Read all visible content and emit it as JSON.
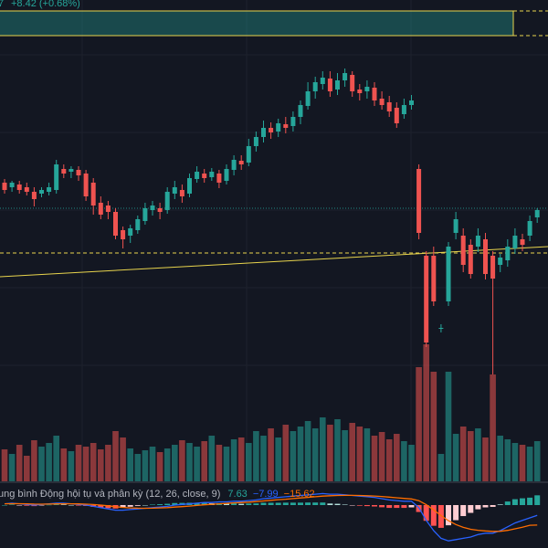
{
  "header": {
    "fragment": "7",
    "change": "+8.42 (+0.68%)"
  },
  "chart_data": {
    "type": "candlestick",
    "up_color": "#26a69a",
    "down_color": "#ef5350",
    "ohlc": [
      [
        1300,
        1304,
        1288,
        1292
      ],
      [
        1295,
        1302,
        1290,
        1300
      ],
      [
        1298,
        1302,
        1288,
        1292
      ],
      [
        1295,
        1300,
        1286,
        1290
      ],
      [
        1290,
        1295,
        1274,
        1282
      ],
      [
        1288,
        1295,
        1284,
        1292
      ],
      [
        1290,
        1300,
        1286,
        1295
      ],
      [
        1292,
        1325,
        1288,
        1320
      ],
      [
        1315,
        1320,
        1305,
        1310
      ],
      [
        1312,
        1318,
        1305,
        1315
      ],
      [
        1314,
        1318,
        1302,
        1308
      ],
      [
        1310,
        1314,
        1280,
        1285
      ],
      [
        1300,
        1305,
        1265,
        1275
      ],
      [
        1278,
        1285,
        1260,
        1265
      ],
      [
        1275,
        1280,
        1260,
        1268
      ],
      [
        1268,
        1272,
        1238,
        1242
      ],
      [
        1248,
        1252,
        1228,
        1238
      ],
      [
        1242,
        1254,
        1234,
        1250
      ],
      [
        1248,
        1264,
        1244,
        1260
      ],
      [
        1258,
        1278,
        1254,
        1272
      ],
      [
        1270,
        1280,
        1264,
        1275
      ],
      [
        1272,
        1278,
        1260,
        1268
      ],
      [
        1270,
        1295,
        1266,
        1290
      ],
      [
        1288,
        1302,
        1282,
        1295
      ],
      [
        1292,
        1298,
        1278,
        1285
      ],
      [
        1288,
        1310,
        1284,
        1305
      ],
      [
        1304,
        1318,
        1300,
        1312
      ],
      [
        1310,
        1315,
        1300,
        1305
      ],
      [
        1306,
        1316,
        1302,
        1312
      ],
      [
        1310,
        1314,
        1294,
        1300
      ],
      [
        1302,
        1320,
        1298,
        1315
      ],
      [
        1314,
        1330,
        1308,
        1325
      ],
      [
        1324,
        1330,
        1314,
        1320
      ],
      [
        1322,
        1348,
        1318,
        1340
      ],
      [
        1340,
        1356,
        1334,
        1350
      ],
      [
        1350,
        1368,
        1344,
        1360
      ],
      [
        1360,
        1366,
        1348,
        1355
      ],
      [
        1356,
        1370,
        1350,
        1365
      ],
      [
        1364,
        1372,
        1354,
        1360
      ],
      [
        1362,
        1378,
        1356,
        1372
      ],
      [
        1372,
        1390,
        1364,
        1385
      ],
      [
        1384,
        1410,
        1380,
        1400
      ],
      [
        1400,
        1416,
        1392,
        1410
      ],
      [
        1408,
        1422,
        1402,
        1415
      ],
      [
        1414,
        1422,
        1394,
        1400
      ],
      [
        1402,
        1420,
        1396,
        1412
      ],
      [
        1412,
        1425,
        1405,
        1420
      ],
      [
        1418,
        1422,
        1394,
        1400
      ],
      [
        1402,
        1408,
        1390,
        1398
      ],
      [
        1400,
        1412,
        1392,
        1405
      ],
      [
        1404,
        1410,
        1384,
        1390
      ],
      [
        1392,
        1400,
        1380,
        1385
      ],
      [
        1388,
        1395,
        1372,
        1378
      ],
      [
        1382,
        1388,
        1360,
        1365
      ],
      [
        1375,
        1392,
        1370,
        1385
      ],
      [
        1385,
        1396,
        1380,
        1390
      ],
      [
        1315,
        1320,
        1238,
        1245
      ],
      [
        1220,
        1225,
        1120,
        1125
      ],
      [
        1220,
        1230,
        1165,
        1170
      ],
      [
        1140,
        1145,
        1136,
        1141
      ],
      [
        1170,
        1235,
        1165,
        1230
      ],
      [
        1245,
        1268,
        1238,
        1260
      ],
      [
        1242,
        1250,
        1202,
        1210
      ],
      [
        1232,
        1238,
        1195,
        1200
      ],
      [
        1230,
        1250,
        1224,
        1242
      ],
      [
        1238,
        1245,
        1194,
        1200
      ],
      [
        1220,
        1225,
        1090,
        1195
      ],
      [
        1210,
        1222,
        1202,
        1218
      ],
      [
        1215,
        1238,
        1208,
        1230
      ],
      [
        1228,
        1250,
        1222,
        1242
      ],
      [
        1238,
        1244,
        1225,
        1232
      ],
      [
        1242,
        1264,
        1236,
        1258
      ],
      [
        1262,
        1272,
        1256,
        1270
      ]
    ],
    "volume": [
      35,
      30,
      40,
      28,
      45,
      38,
      42,
      50,
      36,
      33,
      40,
      38,
      42,
      35,
      40,
      55,
      48,
      36,
      30,
      34,
      38,
      32,
      36,
      40,
      45,
      42,
      38,
      44,
      50,
      40,
      38,
      46,
      48,
      42,
      55,
      50,
      58,
      48,
      62,
      55,
      60,
      66,
      58,
      70,
      62,
      68,
      56,
      64,
      60,
      58,
      50,
      54,
      46,
      52,
      44,
      40,
      125,
      150,
      120,
      30,
      120,
      52,
      60,
      55,
      58,
      48,
      117,
      50,
      46,
      42,
      40,
      38,
      44
    ],
    "macd": {
      "title": "ung bình Động hội tụ và phân kỳ (12, 26, close, 9)",
      "histogram": [
        0,
        0.4,
        -0.1,
        -0.5,
        -0.8,
        -0.2,
        0.2,
        0.6,
        0.5,
        0,
        -0.4,
        -0.7,
        -1.4,
        -2,
        -2.4,
        -2.7,
        -2.2,
        -1.3,
        -0.6,
        0,
        0.4,
        0.7,
        1,
        1.6,
        1.7,
        1.8,
        1.8,
        1.8,
        1.4,
        1.5,
        1.2,
        1.3,
        1,
        1.2,
        1.3,
        1.8,
        1.8,
        1.8,
        1.9,
        1.9,
        1.9,
        2,
        2,
        2,
        1.2,
        1,
        0.4,
        -0.1,
        -0.5,
        -0.8,
        -1.1,
        -1.7,
        -2.2,
        -2.2,
        -2.2,
        -1.8,
        -5.4,
        -12.3,
        -16.2,
        -17.8,
        -15.8,
        -11.8,
        -8.6,
        -6.1,
        -3.3,
        -1.8,
        -1.4,
        0.5,
        2.8,
        4.6,
        5.3,
        5.8,
        7.63
      ],
      "macd_line": {
        "color": "#2962ff",
        "value_label": "−7.99",
        "values": [
          1,
          1.5,
          1,
          0.5,
          0,
          0.5,
          1,
          1.5,
          1.5,
          1,
          0.5,
          0,
          -1,
          -2,
          -3,
          -4,
          -4,
          -3.5,
          -3,
          -2.5,
          -2,
          -1.5,
          -1,
          0,
          0.5,
          1,
          1.5,
          2,
          2,
          2.5,
          2.5,
          3,
          3,
          3.5,
          4,
          5,
          5.5,
          6,
          6.5,
          7,
          7.5,
          8,
          8.5,
          9,
          8.5,
          8.5,
          8,
          7.5,
          7,
          6.5,
          6,
          5,
          4,
          3.5,
          3,
          3,
          -2,
          -12,
          -20,
          -26,
          -28,
          -27,
          -26,
          -25,
          -23,
          -22,
          -22,
          -20,
          -17,
          -14,
          -12,
          -10,
          -7.99
        ]
      },
      "signal_line": {
        "color": "#ff6d00",
        "value_label": "−15.62",
        "values": [
          1,
          1.1,
          1.1,
          1,
          0.8,
          0.7,
          0.8,
          0.9,
          1,
          1,
          0.9,
          0.7,
          0.4,
          0,
          -0.6,
          -1.3,
          -1.8,
          -2.2,
          -2.4,
          -2.5,
          -2.4,
          -2.2,
          -2,
          -1.6,
          -1.2,
          -0.8,
          -0.3,
          0.2,
          0.6,
          1,
          1.3,
          1.7,
          2,
          2.3,
          2.7,
          3.2,
          3.7,
          4.2,
          4.6,
          5.1,
          5.6,
          6,
          6.5,
          7,
          7.3,
          7.5,
          7.6,
          7.6,
          7.5,
          7.3,
          7.1,
          6.7,
          6.2,
          5.7,
          5.2,
          4.8,
          3.4,
          0.3,
          -3.8,
          -8.2,
          -12.2,
          -15.2,
          -17.4,
          -18.9,
          -19.7,
          -20.2,
          -20.6,
          -20.5,
          -19.8,
          -18.6,
          -17.3,
          -15.8,
          -15.62
        ]
      }
    }
  }
}
